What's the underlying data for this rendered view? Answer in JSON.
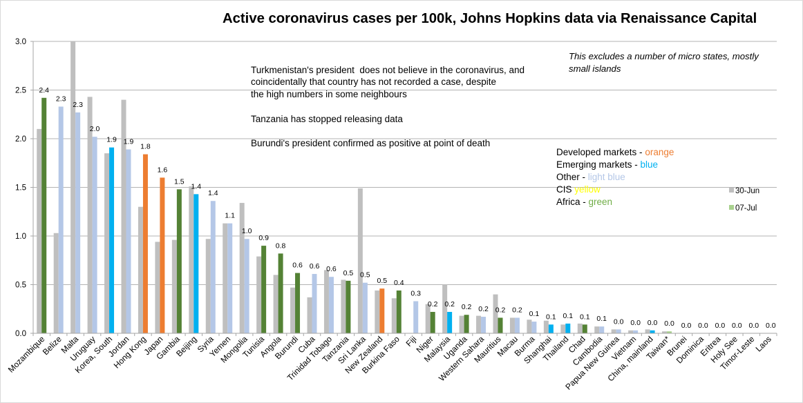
{
  "chart_data": {
    "type": "bar",
    "title": "Active coronavirus cases per 100k, Johns Hopkins data via Renaissance Capital",
    "xlabel": "",
    "ylabel": "",
    "ylim": [
      0,
      3.0
    ],
    "yticks": [
      0,
      0.5,
      1.0,
      1.5,
      2.0,
      2.5,
      3.0
    ],
    "ytick_labels": [
      "0.0",
      "0.5",
      "1.0",
      "1.5",
      "2.0",
      "2.5",
      "3.0"
    ],
    "grid": true,
    "legend_position": "right",
    "categories": [
      "Mozambique",
      "Belize",
      "Malta",
      "Uruguay",
      "Korea, South",
      "Jordan",
      "Hong Kong",
      "Japan",
      "Gambia",
      "Beijing",
      "Syria",
      "Yemen",
      "Mongolia",
      "Tunisia",
      "Angola",
      "Burundi",
      "Cuba",
      "Trinidad Tobago",
      "Tanzania",
      "Sri Lanka",
      "New Zealand",
      "Burkina Faso",
      "Fiji",
      "Niger",
      "Malaysia",
      "Uganda",
      "Western Sahara",
      "Mauritius",
      "Macau",
      "Burma",
      "Shanghai",
      "Thailand",
      "Chad",
      "Cambodia",
      "Papua New Guinea",
      "Vietnam",
      "China, mainland",
      "Taiwan*",
      "Brunei",
      "Dominica",
      "Eritrea",
      "Holy See",
      "Timor-Leste",
      "Laos"
    ],
    "series": [
      {
        "name": "30-Jun",
        "color": "#BFBFBF",
        "values": [
          2.1,
          1.03,
          3.0,
          2.43,
          1.85,
          2.4,
          1.3,
          0.94,
          0.96,
          1.51,
          0.97,
          1.13,
          1.34,
          0.79,
          0.6,
          0.47,
          0.37,
          0.65,
          0.55,
          1.49,
          0.44,
          0.36,
          0.0,
          0.3,
          0.5,
          0.18,
          0.18,
          0.4,
          0.16,
          0.14,
          0.13,
          0.09,
          0.1,
          0.07,
          0.04,
          0.03,
          0.04,
          0.02,
          0,
          0,
          0,
          0,
          0,
          0
        ]
      },
      {
        "name": "07-Jul",
        "color": "#A9D18E",
        "bar_colors": [
          "#548235",
          "#B4C7E7",
          "#B4C7E7",
          "#B4C7E7",
          "#00B0F0",
          "#B4C7E7",
          "#ED7D31",
          "#ED7D31",
          "#548235",
          "#00B0F0",
          "#B4C7E7",
          "#B4C7E7",
          "#B4C7E7",
          "#548235",
          "#548235",
          "#548235",
          "#B4C7E7",
          "#B4C7E7",
          "#548235",
          "#B4C7E7",
          "#ED7D31",
          "#548235",
          "#B4C7E7",
          "#548235",
          "#00B0F0",
          "#548235",
          "#B4C7E7",
          "#548235",
          "#B4C7E7",
          "#B4C7E7",
          "#00B0F0",
          "#00B0F0",
          "#548235",
          "#B4C7E7",
          "#B4C7E7",
          "#B4C7E7",
          "#00B0F0",
          "#A9D18E",
          "#B4C7E7",
          "#B4C7E7",
          "#B4C7E7",
          "#B4C7E7",
          "#B4C7E7",
          "#B4C7E7"
        ],
        "values": [
          2.42,
          2.33,
          2.27,
          2.02,
          1.91,
          1.89,
          1.84,
          1.6,
          1.48,
          1.43,
          1.36,
          1.13,
          0.97,
          0.9,
          0.82,
          0.62,
          0.61,
          0.58,
          0.54,
          0.52,
          0.46,
          0.44,
          0.33,
          0.22,
          0.22,
          0.19,
          0.17,
          0.16,
          0.16,
          0.12,
          0.09,
          0.1,
          0.09,
          0.07,
          0.04,
          0.03,
          0.03,
          0.02,
          0,
          0,
          0,
          0,
          0,
          0
        ],
        "labels": [
          "2.4",
          "2.3",
          "2.3",
          "2.0",
          "1.9",
          "1.9",
          "1.8",
          "1.6",
          "1.5",
          "1.4",
          "1.4",
          "1.1",
          "1.0",
          "0.9",
          "0.8",
          "0.6",
          "0.6",
          "0.6",
          "0.5",
          "0.5",
          "0.5",
          "0.4",
          "0.3",
          "0.2",
          "0.2",
          "0.2",
          "0.2",
          "0.2",
          "0.2",
          "0.1",
          "0.1",
          "0.1",
          "0.1",
          "0.1",
          "0.0",
          "0.0",
          "0.0",
          "0.0",
          "0.0",
          "0.0",
          "0.0",
          "0.0",
          "0.0",
          "0.0"
        ]
      }
    ]
  },
  "annotations": {
    "note": [
      "This excludes a number of micro states, mostly",
      "small islands"
    ],
    "comments": [
      "Turkmenistan's president  does not believe in the coronavirus, and",
      "coincidentally that country has not recorded a case, despite",
      "the high numbers in some neighbours",
      "Tanzania has stopped releasing data",
      "Burundi's president confirmed as positive at point of death"
    ],
    "color_key": [
      {
        "prefix": "Developed markets - ",
        "word": "orange",
        "color": "#ED7D31"
      },
      {
        "prefix": "Emerging markets - ",
        "word": "blue",
        "color": "#00B0F0"
      },
      {
        "prefix": "Other - ",
        "word": "light blue",
        "color": "#B4C7E7"
      },
      {
        "prefix": "CIS ",
        "word": "yellow",
        "color": "#FFFF00"
      },
      {
        "prefix": "Africa - ",
        "word": "green",
        "color": "#70AD47"
      }
    ]
  }
}
